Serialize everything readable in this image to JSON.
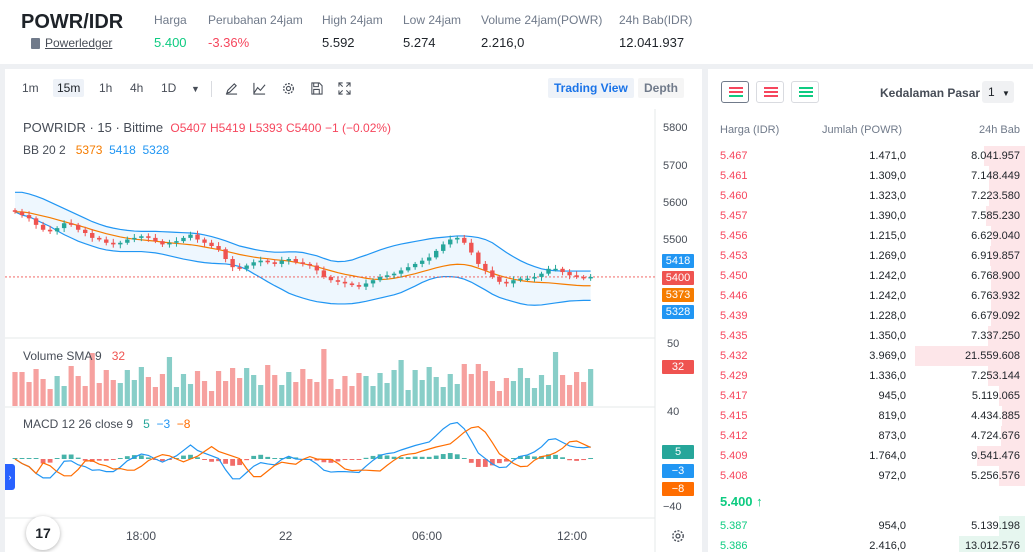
{
  "ticker": {
    "pair": "POWR/IDR",
    "coin_name": "Powerledger",
    "stats": [
      {
        "label": "Harga",
        "value": "5.400",
        "tone": "green"
      },
      {
        "label": "Perubahan 24jam",
        "value": "-3.36%",
        "tone": "red"
      },
      {
        "label": "High 24jam",
        "value": "5.592",
        "tone": ""
      },
      {
        "label": "Low 24jam",
        "value": "5.274",
        "tone": ""
      },
      {
        "label": "Volume 24jam(POWR)",
        "value": "2.216,0",
        "tone": ""
      },
      {
        "label": "24h Bab(IDR)",
        "value": "12.041.937",
        "tone": ""
      }
    ]
  },
  "toolbar": {
    "intervals": [
      "1m",
      "15m",
      "1h",
      "4h",
      "1D"
    ],
    "active_interval": "15m",
    "icons": [
      "draw-icon",
      "indicator-icon",
      "settings-icon",
      "save-icon",
      "fullscreen-icon"
    ],
    "view_trading": "Trading View",
    "view_depth": "Depth"
  },
  "chart": {
    "symbol": "POWRIDR · 15 · Bittime",
    "o": "O5407",
    "h": "H5419",
    "l": "L5393",
    "c": "C5400",
    "chg": "−1 (−0.02%)",
    "bb_label": "BB 20 2",
    "bb_vals": [
      "5373",
      "5418",
      "5328"
    ],
    "vol_label": "Volume SMA 9",
    "vol_val": "32",
    "macd_label": "MACD 12 26 close 9",
    "macd_vals": [
      "5",
      "−3",
      "−8"
    ],
    "price_axis": [
      "5800",
      "5700",
      "5600",
      "5500"
    ],
    "vol_axis": [
      "50"
    ],
    "macd_axis": [
      "40",
      "−40"
    ],
    "time_axis": [
      "18:00",
      "22",
      "06:00",
      "12:00"
    ],
    "tags": {
      "bb_upper": "5418",
      "last": "5400",
      "bb_mid": "5373",
      "bb_lower": "5328",
      "vol": "32",
      "macd": "5",
      "signal": "−3",
      "hist": "−8"
    },
    "logo": "17"
  },
  "chart_data": {
    "type": "line",
    "ylim": [
      5240,
      5830
    ],
    "series": [
      {
        "name": "POWRIDR",
        "values": [
          5600,
          5590,
          5580,
          5560,
          5545,
          5540,
          5550,
          5565,
          5560,
          5545,
          5535,
          5520,
          5515,
          5505,
          5500,
          5505,
          5515,
          5520,
          5525,
          5520,
          5510,
          5500,
          5505,
          5510,
          5520,
          5530,
          5515,
          5505,
          5495,
          5485,
          5455,
          5430,
          5425,
          5435,
          5445,
          5450,
          5445,
          5440,
          5450,
          5455,
          5445,
          5440,
          5435,
          5420,
          5400,
          5390,
          5385,
          5380,
          5375,
          5370,
          5380,
          5390,
          5400,
          5405,
          5410,
          5420,
          5430,
          5440,
          5450,
          5460,
          5480,
          5500,
          5515,
          5520,
          5505,
          5475,
          5440,
          5420,
          5400,
          5385,
          5380,
          5390,
          5395,
          5395,
          5400,
          5410,
          5425,
          5425,
          5415,
          5405,
          5400,
          5398,
          5400
        ]
      },
      {
        "name": "5373",
        "values": [
          5600,
          5600,
          5597,
          5592,
          5587,
          5582,
          5576,
          5570,
          5564,
          5558,
          5552,
          5545,
          5539,
          5533,
          5528,
          5523,
          5519,
          5516,
          5514,
          5512,
          5510,
          5507,
          5505,
          5503,
          5501,
          5499,
          5496,
          5492,
          5488,
          5484,
          5479,
          5474,
          5469,
          5465,
          5461,
          5458,
          5456,
          5453,
          5451,
          5449,
          5445,
          5441,
          5436,
          5431,
          5425,
          5419,
          5413,
          5408,
          5404,
          5400,
          5396,
          5393,
          5392,
          5393,
          5396,
          5400,
          5405,
          5410,
          5416,
          5422,
          5428,
          5433,
          5437,
          5439,
          5438,
          5434,
          5427,
          5419,
          5411,
          5404,
          5398,
          5393,
          5389,
          5386,
          5384,
          5383,
          5382,
          5380,
          5378,
          5376,
          5374,
          5373,
          5373
        ]
      },
      {
        "name": "5418",
        "values": [
          5660,
          5660,
          5655,
          5648,
          5640,
          5630,
          5620,
          5610,
          5600,
          5590,
          5580,
          5570,
          5562,
          5555,
          5550,
          5546,
          5543,
          5541,
          5540,
          5540,
          5540,
          5539,
          5538,
          5537,
          5536,
          5535,
          5533,
          5529,
          5524,
          5518,
          5511,
          5503,
          5495,
          5490,
          5485,
          5481,
          5478,
          5476,
          5476,
          5477,
          5477,
          5475,
          5470,
          5465,
          5457,
          5450,
          5447,
          5448,
          5452,
          5460,
          5467,
          5475,
          5483,
          5490,
          5496,
          5501,
          5505,
          5509,
          5513,
          5517,
          5520,
          5522,
          5524,
          5526,
          5526,
          5524,
          5521,
          5515,
          5505,
          5490,
          5475,
          5462,
          5450,
          5440,
          5432,
          5425,
          5421,
          5419,
          5418,
          5418,
          5418,
          5418,
          5418
        ]
      },
      {
        "name": "5328",
        "values": [
          5600,
          5590,
          5585,
          5575,
          5565,
          5555,
          5542,
          5530,
          5520,
          5510,
          5502,
          5495,
          5488,
          5483,
          5480,
          5478,
          5478,
          5478,
          5478,
          5476,
          5474,
          5470,
          5465,
          5460,
          5455,
          5451,
          5447,
          5444,
          5442,
          5441,
          5440,
          5437,
          5432,
          5423,
          5410,
          5398,
          5385,
          5373,
          5362,
          5350,
          5342,
          5335,
          5329,
          5324,
          5321,
          5318,
          5317,
          5317,
          5318,
          5321,
          5325,
          5330,
          5335,
          5340,
          5345,
          5352,
          5362,
          5372,
          5383,
          5392,
          5398,
          5401,
          5401,
          5399,
          5393,
          5384,
          5372,
          5360,
          5347,
          5337,
          5330,
          5324,
          5318,
          5314,
          5313,
          5314,
          5317,
          5320,
          5323,
          5326,
          5327,
          5328,
          5328
        ]
      }
    ]
  },
  "orderbook": {
    "depth_label": "Kedalaman Pasar",
    "depth_value": "1",
    "headers": [
      "Harga (IDR)",
      "Jumlah (POWR)",
      "24h Bab"
    ],
    "asks": [
      {
        "price": "5.467",
        "qty": "1.471,0",
        "total": "8.041.957",
        "fill": 0.37
      },
      {
        "price": "5.461",
        "qty": "1.309,0",
        "total": "7.148.449",
        "fill": 0.33
      },
      {
        "price": "5.460",
        "qty": "1.323,0",
        "total": "7.223.580",
        "fill": 0.33
      },
      {
        "price": "5.457",
        "qty": "1.390,0",
        "total": "7.585.230",
        "fill": 0.35
      },
      {
        "price": "5.456",
        "qty": "1.215,0",
        "total": "6.629.040",
        "fill": 0.31
      },
      {
        "price": "5.453",
        "qty": "1.269,0",
        "total": "6.919.857",
        "fill": 0.32
      },
      {
        "price": "5.450",
        "qty": "1.242,0",
        "total": "6.768.900",
        "fill": 0.31
      },
      {
        "price": "5.446",
        "qty": "1.242,0",
        "total": "6.763.932",
        "fill": 0.31
      },
      {
        "price": "5.439",
        "qty": "1.228,0",
        "total": "6.679.092",
        "fill": 0.31
      },
      {
        "price": "5.435",
        "qty": "1.350,0",
        "total": "7.337.250",
        "fill": 0.34
      },
      {
        "price": "5.432",
        "qty": "3.969,0",
        "total": "21.559.608",
        "fill": 1.0
      },
      {
        "price": "5.429",
        "qty": "1.336,0",
        "total": "7.253.144",
        "fill": 0.34
      },
      {
        "price": "5.417",
        "qty": "945,0",
        "total": "5.119.065",
        "fill": 0.24
      },
      {
        "price": "5.415",
        "qty": "819,0",
        "total": "4.434.885",
        "fill": 0.21
      },
      {
        "price": "5.412",
        "qty": "873,0",
        "total": "4.724.676",
        "fill": 0.22
      },
      {
        "price": "5.409",
        "qty": "1.764,0",
        "total": "9.541.476",
        "fill": 0.44
      },
      {
        "price": "5.408",
        "qty": "972,0",
        "total": "5.256.576",
        "fill": 0.24
      }
    ],
    "mid_price": "5.400 ↑",
    "bids": [
      {
        "price": "5.387",
        "qty": "954,0",
        "total": "5.139.198",
        "fill": 0.24
      },
      {
        "price": "5.386",
        "qty": "2.416,0",
        "total": "13.012.576",
        "fill": 0.6
      }
    ]
  },
  "colors": {
    "up": "#26a69a",
    "down": "#ef5350",
    "bb_mid": "#f57c00",
    "bb_band": "#2196f3",
    "macd": "#2196f3",
    "signal": "#ff6d00"
  }
}
